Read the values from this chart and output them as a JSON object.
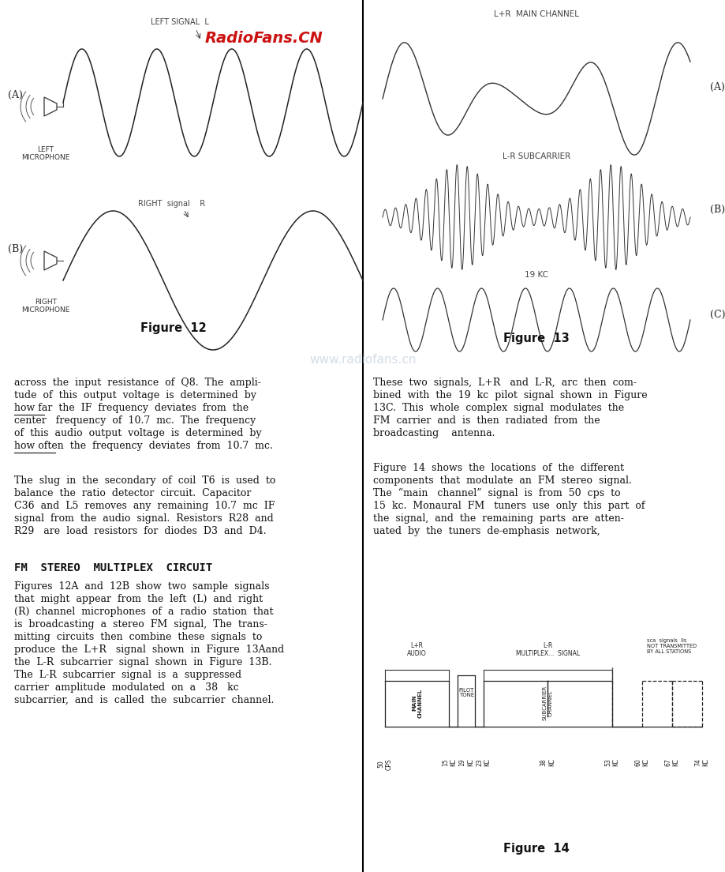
{
  "bg_color": "#ffffff",
  "radiofans_text": "RadioFans.CN",
  "radiofans_color": "#cc1111",
  "watermark_text": "www.radiofans.cn",
  "watermark_color": "#aabbcc",
  "fig12_label": "Figure  12",
  "fig13_label": "Figure  13",
  "fig14_label": "Figure  14",
  "left_signal_label": "LEFT SIGNAL  L",
  "right_signal_label": "RIGHT  signal    R",
  "lpr_main_label": "L+R  MAIN CHANNEL",
  "lmr_sub_label": "L-R SUBCARRIER",
  "pilot_label": "19 KC",
  "label_A_fig12": "(A)",
  "label_B_fig12": "(B)",
  "label_A_fig13": "(A)",
  "label_B_fig13": "(B)",
  "label_C_fig13": "(C)",
  "left_mic_label": "LEFT\nMICROPHONE",
  "right_mic_label": "RIGHT\nMICROPHONE",
  "body_text_left_p1": [
    "across  the  input  resistance  of  Q8.  The  ampli-",
    "tude  of  this  output  voltage  is  determined  by",
    "how far  the  IF  frequency  deviates  from  the",
    "center   frequency  of  10.7  mc.  The  frequency",
    "of  this  audio  output  voltage  is  determined  by",
    "how often  the  frequency  deviates  from  10.7  mc."
  ],
  "underline_howfar": [
    18,
    49
  ],
  "underline_howoften": [
    18,
    58
  ],
  "body_text_left_p2": [
    "The  slug  in  the  secondary  of  coil  T6  is  used  to",
    "balance  the  ratio  detector  circuit.  Capacitor",
    "C36  and  L5  removes  any  remaining  10.7  mc  IF",
    "signal  from  the  audio  signal.  Resistors  R28  and",
    "R29   are  load  resistors  for  diodes  D3  and  D4."
  ],
  "fm_heading": "FM  STEREO  MULTIPLEX  CIRCUIT",
  "body_text_left_p3": [
    "Figures  12A  and  12B  show  two  sample  signals",
    "that  might  appear  from  the  left  (L)  and  right",
    "(R)  channel  microphones  of  a  radio  station  that",
    "is  broadcasting  a  stereo  FM  signal,  The  trans-",
    "mitting  circuits  then  combine  these  signals  to",
    "produce  the  L+R   signal  shown  in  Figure  13Aand",
    "the  L-R  subcarrier  signal  shown  in  Figure  13B.",
    "The  L-R  subcarrier  signal  is  a  suppressed",
    "carrier  amplitude  modulated  on  a   38   kc",
    "subcarrier,  and  is  called  the  subcarrier  channel."
  ],
  "body_text_right_p1": [
    "These  two  signals,  L+R   and  L-R,  arc  then  com-",
    "bined  with  the  19  kc  pilot  signal  shown  in  Figure",
    "13C.  This  whole  complex  signal  modulates  the",
    "FM  carrier  and  is  then  radiated  from  the",
    "broadcasting    antenna."
  ],
  "body_text_right_p2": [
    "Figure  14  shows  the  locations  of  the  different",
    "components  that  modulate  an  FM  stereo  signal.",
    "The  “main   channel”  signal  is  from  50  cps  to",
    "15  kc.  Monaural  FM   tuners  use  only  this  part  of",
    "the  signal,  and  the  remaining  parts  are  atten-",
    "uated  by  the  tuners  de-emphasis  network,"
  ]
}
